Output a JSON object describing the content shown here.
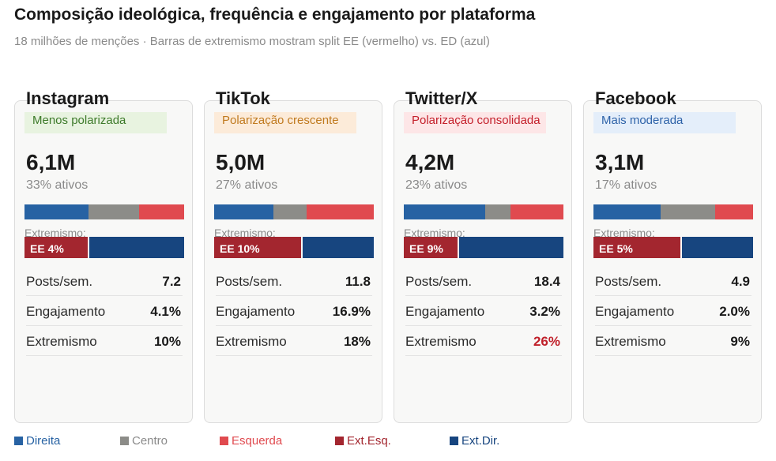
{
  "header": {
    "title": "Composição ideológica, frequência e engajamento por plataforma",
    "subtitle": "18 milhões de menções · Barras de extremismo mostram split EE (vermelho) vs. ED (azul)"
  },
  "colors": {
    "direita": "#2762a3",
    "centro": "#8c8c88",
    "esquerda": "#e04a4f",
    "ext_esq": "#a3262f",
    "ext_dir": "#17457f"
  },
  "chart_data": {
    "type": "bar",
    "title": "Composição ideológica, frequência e engajamento por plataforma",
    "subtitle": "18 milhões de menções · Barras de extremismo mostram split EE (vermelho) vs. ED (azul)",
    "platforms": [
      {
        "name": "Instagram",
        "badge": "Menos polarizada",
        "badge_bg": "#e8f3e0",
        "badge_color": "#3d7a2a",
        "mentions": "6,1M",
        "active": "33% ativos",
        "composition": {
          "direita": 40,
          "centro": 32,
          "esquerda": 28
        },
        "ext_label": "Extremismo:",
        "ee_label": "EE 4%",
        "ee_share": 40,
        "rows": [
          {
            "label": "Posts/sem.",
            "value": "7.2"
          },
          {
            "label": "Engajamento",
            "value": "4.1%"
          },
          {
            "label": "Extremismo",
            "value": "10%",
            "highlight": false
          }
        ]
      },
      {
        "name": "TikTok",
        "badge": "Polarização crescente",
        "badge_bg": "#fcebd9",
        "badge_color": "#c07a1f",
        "mentions": "5,0M",
        "active": "27% ativos",
        "composition": {
          "direita": 37,
          "centro": 21,
          "esquerda": 42
        },
        "ext_label": "Extremismo:",
        "ee_label": "EE 10%",
        "ee_share": 55,
        "rows": [
          {
            "label": "Posts/sem.",
            "value": "11.8"
          },
          {
            "label": "Engajamento",
            "value": "16.9%"
          },
          {
            "label": "Extremismo",
            "value": "18%",
            "highlight": false
          }
        ]
      },
      {
        "name": "Twitter/X",
        "badge": "Polarização consolidada",
        "badge_bg": "#fde6e7",
        "badge_color": "#c4202b",
        "mentions": "4,2M",
        "active": "23% ativos",
        "composition": {
          "direita": 51,
          "centro": 16,
          "esquerda": 33
        },
        "ext_label": "Extremismo:",
        "ee_label": "EE 9%",
        "ee_share": 34,
        "rows": [
          {
            "label": "Posts/sem.",
            "value": "18.4"
          },
          {
            "label": "Engajamento",
            "value": "3.2%"
          },
          {
            "label": "Extremismo",
            "value": "26%",
            "highlight": true
          }
        ]
      },
      {
        "name": "Facebook",
        "badge": "Mais moderada",
        "badge_bg": "#e4eefa",
        "badge_color": "#2d62a8",
        "mentions": "3,1M",
        "active": "17% ativos",
        "composition": {
          "direita": 42,
          "centro": 34,
          "esquerda": 24
        },
        "ext_label": "Extremismo:",
        "ee_label": "EE 5%",
        "ee_share": 55,
        "rows": [
          {
            "label": "Posts/sem.",
            "value": "4.9"
          },
          {
            "label": "Engajamento",
            "value": "2.0%"
          },
          {
            "label": "Extremismo",
            "value": "9%",
            "highlight": false
          }
        ]
      }
    ],
    "legend": [
      {
        "label": "Direita",
        "key": "direita"
      },
      {
        "label": "Centro",
        "key": "centro"
      },
      {
        "label": "Esquerda",
        "key": "esquerda"
      },
      {
        "label": "Ext.Esq.",
        "key": "ext_esq"
      },
      {
        "label": "Ext.Dir.",
        "key": "ext_dir"
      }
    ]
  }
}
